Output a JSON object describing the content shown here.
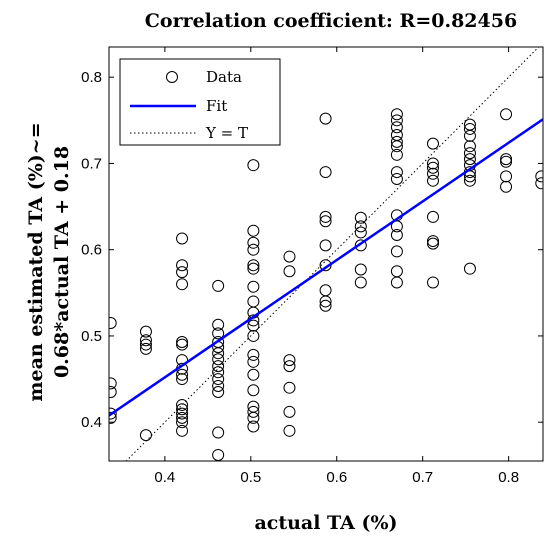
{
  "chart_data": {
    "type": "scatter",
    "title": "Correlation coefficient: R=0.82456",
    "xlabel": "actual TA (%)",
    "ylabel_lines": [
      "mean estimated TA (%)~=",
      "0.68*actual TA + 0.18"
    ],
    "xlim": [
      0.335,
      0.84
    ],
    "ylim": [
      0.355,
      0.835
    ],
    "xticks": [
      0.4,
      0.5,
      0.6,
      0.7,
      0.8
    ],
    "xtick_labels": [
      "0.4",
      "0.5",
      "0.6",
      "0.7",
      "0.8"
    ],
    "yticks": [
      0.4,
      0.5,
      0.6,
      0.7,
      0.8
    ],
    "ytick_labels": [
      "0.4",
      "0.5",
      "0.6",
      "0.7",
      "0.8"
    ],
    "grid": false,
    "legend_position": "top-left",
    "legend": [
      {
        "label": "Data",
        "style": "circle-marker"
      },
      {
        "label": "Fit",
        "style": "solid-blue-line"
      },
      {
        "label": "Y = T",
        "style": "dotted-black-line"
      }
    ],
    "colors": {
      "data": "#000000",
      "fit": "#0000ff",
      "identity": "#000000"
    },
    "fit": {
      "slope": 0.68,
      "intercept": 0.18
    },
    "series": [
      {
        "name": "Data",
        "points": [
          [
            0.337,
            0.515
          ],
          [
            0.337,
            0.445
          ],
          [
            0.337,
            0.435
          ],
          [
            0.337,
            0.41
          ],
          [
            0.337,
            0.405
          ],
          [
            0.378,
            0.505
          ],
          [
            0.378,
            0.495
          ],
          [
            0.378,
            0.49
          ],
          [
            0.378,
            0.485
          ],
          [
            0.378,
            0.385
          ],
          [
            0.42,
            0.613
          ],
          [
            0.42,
            0.582
          ],
          [
            0.42,
            0.574
          ],
          [
            0.42,
            0.56
          ],
          [
            0.42,
            0.493
          ],
          [
            0.42,
            0.49
          ],
          [
            0.42,
            0.472
          ],
          [
            0.42,
            0.462
          ],
          [
            0.42,
            0.455
          ],
          [
            0.42,
            0.45
          ],
          [
            0.42,
            0.42
          ],
          [
            0.42,
            0.415
          ],
          [
            0.42,
            0.41
          ],
          [
            0.42,
            0.405
          ],
          [
            0.42,
            0.4
          ],
          [
            0.42,
            0.39
          ],
          [
            0.462,
            0.558
          ],
          [
            0.462,
            0.513
          ],
          [
            0.462,
            0.503
          ],
          [
            0.462,
            0.493
          ],
          [
            0.462,
            0.487
          ],
          [
            0.462,
            0.48
          ],
          [
            0.462,
            0.473
          ],
          [
            0.462,
            0.465
          ],
          [
            0.462,
            0.458
          ],
          [
            0.462,
            0.45
          ],
          [
            0.462,
            0.442
          ],
          [
            0.462,
            0.435
          ],
          [
            0.462,
            0.388
          ],
          [
            0.462,
            0.362
          ],
          [
            0.503,
            0.698
          ],
          [
            0.503,
            0.622
          ],
          [
            0.503,
            0.608
          ],
          [
            0.503,
            0.6
          ],
          [
            0.503,
            0.582
          ],
          [
            0.503,
            0.578
          ],
          [
            0.503,
            0.557
          ],
          [
            0.503,
            0.54
          ],
          [
            0.503,
            0.527
          ],
          [
            0.503,
            0.518
          ],
          [
            0.503,
            0.512
          ],
          [
            0.503,
            0.5
          ],
          [
            0.503,
            0.478
          ],
          [
            0.503,
            0.47
          ],
          [
            0.503,
            0.455
          ],
          [
            0.503,
            0.437
          ],
          [
            0.503,
            0.418
          ],
          [
            0.503,
            0.412
          ],
          [
            0.503,
            0.405
          ],
          [
            0.503,
            0.395
          ],
          [
            0.545,
            0.592
          ],
          [
            0.545,
            0.575
          ],
          [
            0.545,
            0.472
          ],
          [
            0.545,
            0.465
          ],
          [
            0.545,
            0.44
          ],
          [
            0.545,
            0.412
          ],
          [
            0.545,
            0.39
          ],
          [
            0.587,
            0.752
          ],
          [
            0.587,
            0.69
          ],
          [
            0.587,
            0.638
          ],
          [
            0.587,
            0.633
          ],
          [
            0.587,
            0.605
          ],
          [
            0.587,
            0.582
          ],
          [
            0.587,
            0.553
          ],
          [
            0.587,
            0.54
          ],
          [
            0.587,
            0.535
          ],
          [
            0.628,
            0.637
          ],
          [
            0.628,
            0.627
          ],
          [
            0.628,
            0.62
          ],
          [
            0.628,
            0.605
          ],
          [
            0.628,
            0.577
          ],
          [
            0.628,
            0.562
          ],
          [
            0.67,
            0.757
          ],
          [
            0.67,
            0.75
          ],
          [
            0.67,
            0.742
          ],
          [
            0.67,
            0.733
          ],
          [
            0.67,
            0.725
          ],
          [
            0.67,
            0.72
          ],
          [
            0.67,
            0.71
          ],
          [
            0.67,
            0.69
          ],
          [
            0.67,
            0.682
          ],
          [
            0.67,
            0.64
          ],
          [
            0.67,
            0.627
          ],
          [
            0.67,
            0.617
          ],
          [
            0.67,
            0.598
          ],
          [
            0.67,
            0.575
          ],
          [
            0.67,
            0.562
          ],
          [
            0.712,
            0.723
          ],
          [
            0.712,
            0.7
          ],
          [
            0.712,
            0.695
          ],
          [
            0.712,
            0.688
          ],
          [
            0.712,
            0.68
          ],
          [
            0.712,
            0.638
          ],
          [
            0.712,
            0.61
          ],
          [
            0.712,
            0.607
          ],
          [
            0.712,
            0.562
          ],
          [
            0.755,
            0.745
          ],
          [
            0.755,
            0.74
          ],
          [
            0.755,
            0.732
          ],
          [
            0.755,
            0.72
          ],
          [
            0.755,
            0.712
          ],
          [
            0.755,
            0.705
          ],
          [
            0.755,
            0.698
          ],
          [
            0.755,
            0.69
          ],
          [
            0.755,
            0.685
          ],
          [
            0.755,
            0.68
          ],
          [
            0.755,
            0.578
          ],
          [
            0.797,
            0.757
          ],
          [
            0.797,
            0.705
          ],
          [
            0.797,
            0.702
          ],
          [
            0.797,
            0.685
          ],
          [
            0.797,
            0.673
          ],
          [
            0.838,
            0.685
          ],
          [
            0.838,
            0.677
          ]
        ]
      }
    ]
  }
}
